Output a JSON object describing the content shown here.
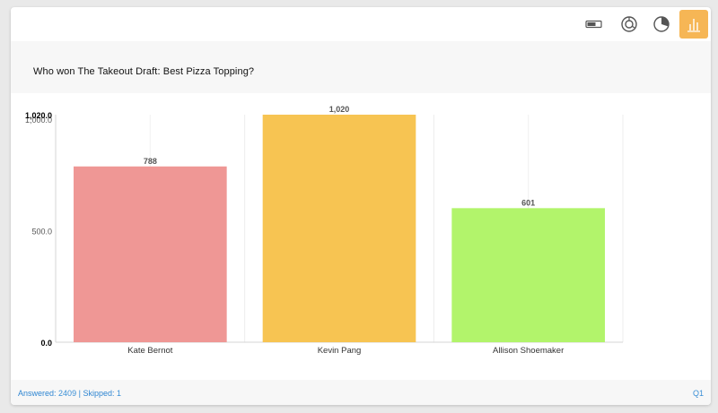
{
  "toolbar": {
    "tools": [
      {
        "name": "toggle-icon",
        "active": false
      },
      {
        "name": "donut-icon",
        "active": false
      },
      {
        "name": "pie-icon",
        "active": false
      },
      {
        "name": "bar-chart-icon",
        "active": true
      }
    ]
  },
  "question": {
    "title": "Who won The Takeout Draft: Best Pizza Topping?"
  },
  "footer": {
    "answered_label": "Answered:",
    "answered_value": "2409",
    "separator": "|",
    "skipped_label": "Skipped:",
    "skipped_value": "1",
    "question_number": "Q1"
  },
  "chart_data": {
    "type": "bar",
    "categories": [
      "Kate Bernot",
      "Kevin Pang",
      "Allison Shoemaker"
    ],
    "values": [
      788,
      1020,
      601
    ],
    "value_labels": [
      "788",
      "1,020",
      "601"
    ],
    "colors": [
      "#ef9795",
      "#f7c452",
      "#b2f46b"
    ],
    "ylim": [
      0,
      1020
    ],
    "yticks": [
      {
        "value": 0,
        "label": "0.0"
      },
      {
        "value": 500,
        "label": "500.0"
      },
      {
        "value": 1000,
        "label": "1,000.0"
      },
      {
        "value": 1020,
        "label": "1,020.0"
      }
    ],
    "grid": true,
    "title": "",
    "xlabel": "",
    "ylabel": ""
  }
}
